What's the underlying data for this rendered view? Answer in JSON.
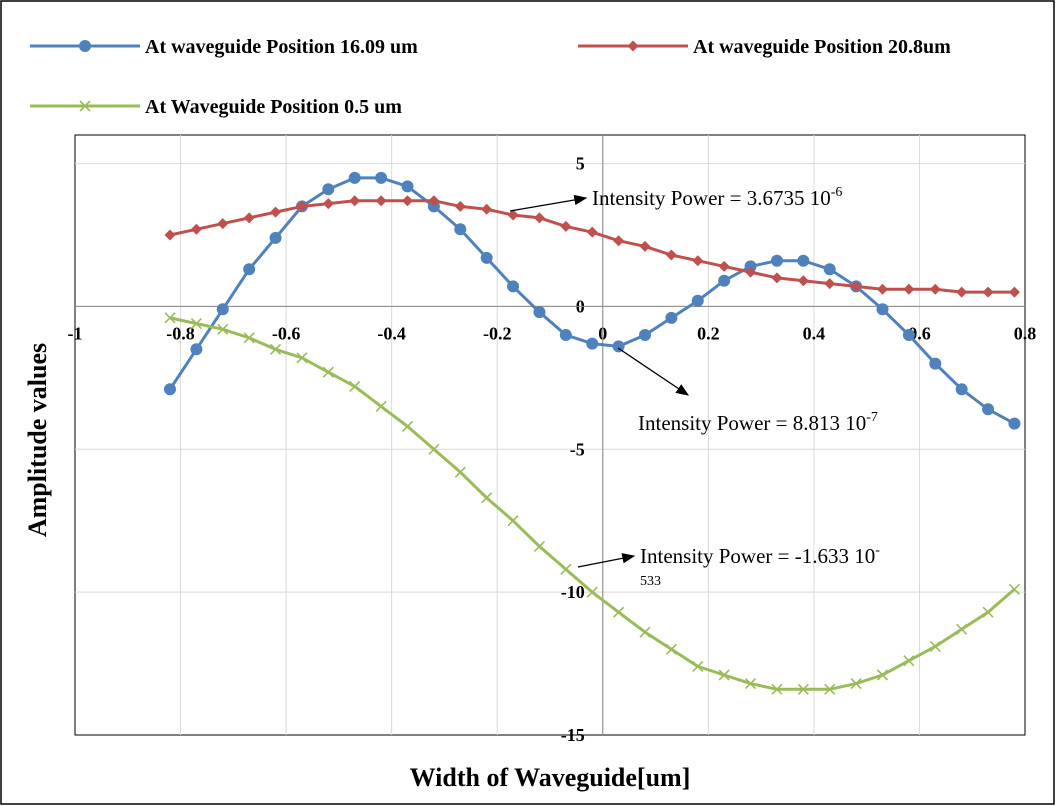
{
  "chart_data": {
    "type": "line",
    "x_label": "Width of Waveguide[um]",
    "y_label": "Amplitude values",
    "x": [
      -0.82,
      -0.77,
      -0.72,
      -0.67,
      -0.62,
      -0.57,
      -0.52,
      -0.47,
      -0.42,
      -0.37,
      -0.32,
      -0.27,
      -0.22,
      -0.17,
      -0.12,
      -0.07,
      -0.02,
      0.03,
      0.08,
      0.13,
      0.18,
      0.23,
      0.28,
      0.33,
      0.38,
      0.43,
      0.48,
      0.53,
      0.58,
      0.63,
      0.68,
      0.73,
      0.78
    ],
    "series": [
      {
        "name": "At waveguide Position 16.09 um",
        "color": "#4f81bd",
        "marker": "circle",
        "values": [
          -2.9,
          -1.5,
          -0.1,
          1.3,
          2.4,
          3.5,
          4.1,
          4.5,
          4.5,
          4.2,
          3.5,
          2.7,
          1.7,
          0.7,
          -0.2,
          -1.0,
          -1.3,
          -1.4,
          -1.0,
          -0.4,
          0.2,
          0.9,
          1.4,
          1.6,
          1.6,
          1.3,
          0.7,
          -0.1,
          -1.0,
          -2.0,
          -2.9,
          -3.6,
          -4.1
        ]
      },
      {
        "name": "At waveguide Position 20.8um",
        "color": "#c0504d",
        "marker": "diamond",
        "values": [
          2.5,
          2.7,
          2.9,
          3.1,
          3.3,
          3.5,
          3.6,
          3.7,
          3.7,
          3.7,
          3.7,
          3.5,
          3.4,
          3.2,
          3.1,
          2.8,
          2.6,
          2.3,
          2.1,
          1.8,
          1.6,
          1.4,
          1.2,
          1.0,
          0.9,
          0.8,
          0.7,
          0.6,
          0.6,
          0.6,
          0.5,
          0.5,
          0.5
        ]
      },
      {
        "name": "At Waveguide Position 0.5 um",
        "color": "#9bbb59",
        "marker": "x",
        "values": [
          -0.4,
          -0.6,
          -0.8,
          -1.1,
          -1.5,
          -1.8,
          -2.3,
          -2.8,
          -3.5,
          -4.2,
          -5.0,
          -5.8,
          -6.7,
          -7.5,
          -8.4,
          -9.2,
          -10.0,
          -10.7,
          -11.4,
          -12.0,
          -12.6,
          -12.9,
          -13.2,
          -13.4,
          -13.4,
          -13.4,
          -13.2,
          -12.9,
          -12.4,
          -11.9,
          -11.3,
          -10.7,
          -9.9
        ]
      }
    ],
    "xlim": [
      -1,
      0.8
    ],
    "xticks": [
      -1,
      -0.8,
      -0.6,
      -0.4,
      -0.2,
      0,
      0.2,
      0.4,
      0.6,
      0.8
    ],
    "ylim": [
      -15,
      6
    ],
    "yticks": [
      -15,
      -10,
      -5,
      0,
      5
    ],
    "grid": true,
    "annotations": [
      {
        "text": "Intensity Power = 3.6735 10",
        "sup": "-6"
      },
      {
        "text": "Intensity Power = 8.813 10",
        "sup": "-7"
      },
      {
        "text": "Intensity Power = -1.633 10",
        "sup": "-",
        "sub": "533"
      }
    ]
  }
}
